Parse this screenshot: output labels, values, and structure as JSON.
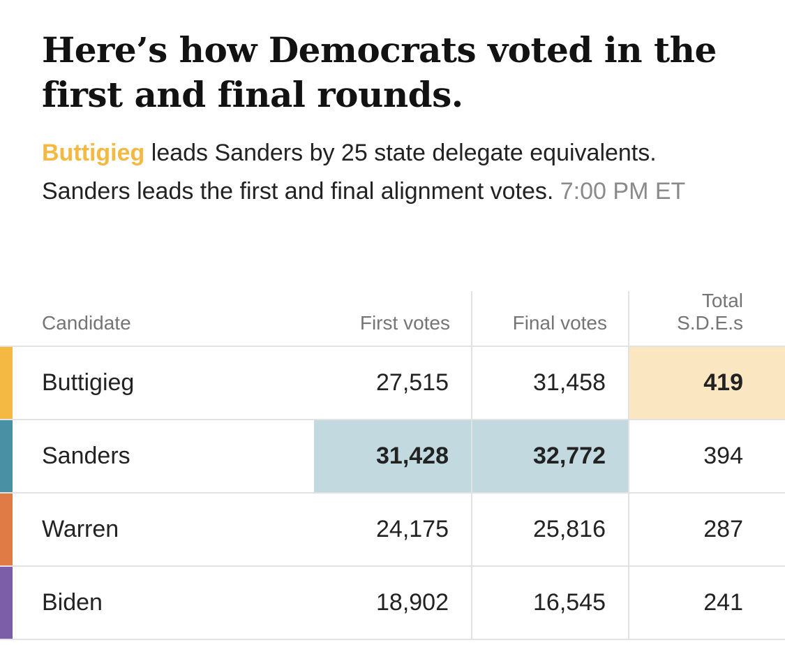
{
  "headline": "Here’s how Democrats voted in the first and final rounds.",
  "summary": {
    "leader_name": "Buttigieg",
    "text": " leads Sanders by 25 state delegate equivalents. Sanders leads the first and final alignment votes.",
    "timestamp": "7:00 PM ET"
  },
  "table": {
    "headers": {
      "candidate": "Candidate",
      "first_votes": "First votes",
      "final_votes": "Final votes",
      "sde_line1": "Total",
      "sde_line2": "S.D.E.s"
    },
    "rows": [
      {
        "candidate": "Buttigieg",
        "first_votes": "27,515",
        "final_votes": "31,458",
        "sde": "419",
        "color": "#f4b942"
      },
      {
        "candidate": "Sanders",
        "first_votes": "31,428",
        "final_votes": "32,772",
        "sde": "394",
        "color": "#4a90a4"
      },
      {
        "candidate": "Warren",
        "first_votes": "24,175",
        "final_votes": "25,816",
        "sde": "287",
        "color": "#e07b45"
      },
      {
        "candidate": "Biden",
        "first_votes": "18,902",
        "final_votes": "16,545",
        "sde": "241",
        "color": "#7b5ea7"
      }
    ]
  }
}
